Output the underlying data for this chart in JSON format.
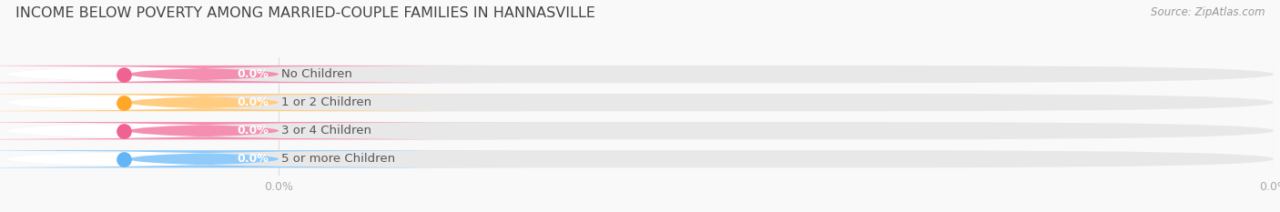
{
  "title": "INCOME BELOW POVERTY AMONG MARRIED-COUPLE FAMILIES IN HANNASVILLE",
  "source": "Source: ZipAtlas.com",
  "categories": [
    "No Children",
    "1 or 2 Children",
    "3 or 4 Children",
    "5 or more Children"
  ],
  "values": [
    0.0,
    0.0,
    0.0,
    0.0
  ],
  "bar_colors": [
    "#f48fb1",
    "#ffcc80",
    "#f48fb1",
    "#90caf9"
  ],
  "dot_colors": [
    "#f06292",
    "#ffa726",
    "#f06292",
    "#64b5f6"
  ],
  "background_color": "#f9f9f9",
  "bar_bg_color": "#e8e8e8",
  "bar_white_color": "#ffffff",
  "title_color": "#444444",
  "label_color": "#555555",
  "source_color": "#999999",
  "tick_color": "#aaaaaa",
  "grid_color": "#dddddd",
  "title_fontsize": 11.5,
  "label_fontsize": 9.5,
  "value_fontsize": 9,
  "source_fontsize": 8.5,
  "tick_fontsize": 9,
  "bar_height": 0.62,
  "colored_portion": 0.22,
  "white_portion": 0.78,
  "total_bar_width": 0.22,
  "n_bars": 4
}
